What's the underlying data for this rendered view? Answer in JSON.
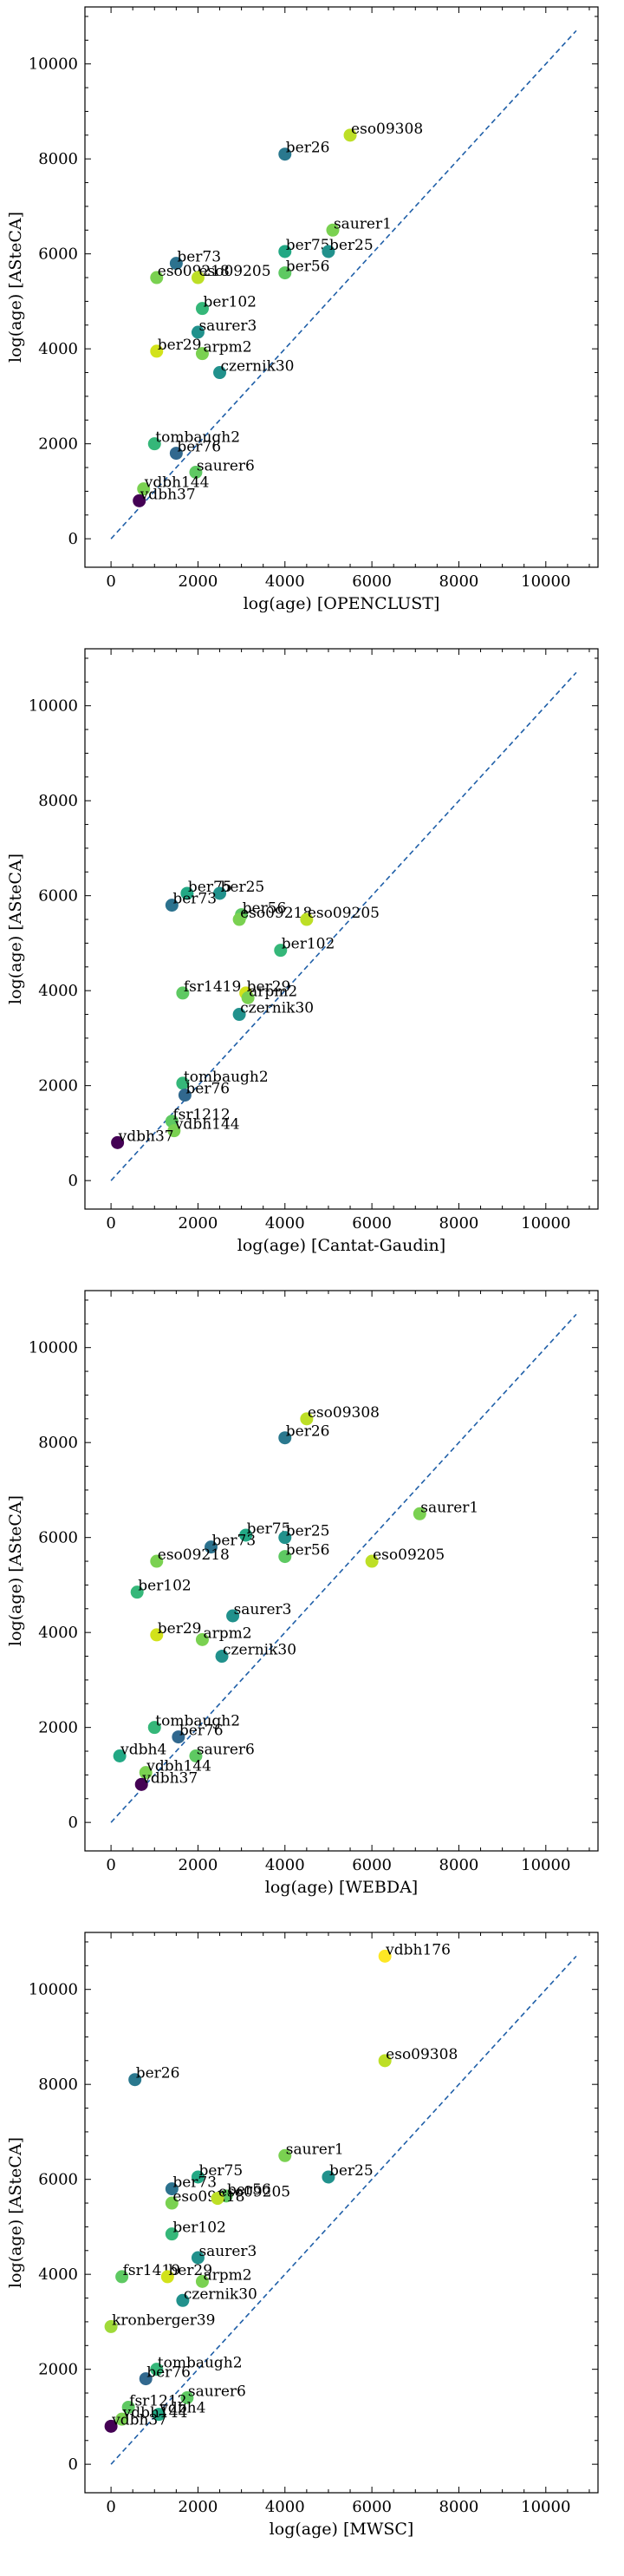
{
  "chart_data": [
    {
      "type": "scatter",
      "xlabel": "log(age) [OPENCLUST]",
      "ylabel": "log(age) [ASteCA]",
      "xlim": [
        -600,
        11200
      ],
      "ylim": [
        -600,
        11200
      ],
      "xticks": [
        0,
        2000,
        4000,
        6000,
        8000,
        10000
      ],
      "yticks": [
        0,
        2000,
        4000,
        6000,
        8000,
        10000
      ],
      "reference_line": "y = x",
      "points": [
        {
          "label": "eso09308",
          "x": 5500,
          "y": 8500,
          "color": "#bddf26"
        },
        {
          "label": "ber26",
          "x": 4000,
          "y": 8100,
          "color": "#2a788e"
        },
        {
          "label": "saurer1",
          "x": 5100,
          "y": 6500,
          "color": "#7ad151"
        },
        {
          "label": "ber75",
          "x": 4000,
          "y": 6050,
          "color": "#22a884"
        },
        {
          "label": "ber25",
          "x": 5000,
          "y": 6050,
          "color": "#21918c"
        },
        {
          "label": "ber56",
          "x": 4000,
          "y": 5600,
          "color": "#5ec962"
        },
        {
          "label": "ber73",
          "x": 1500,
          "y": 5800,
          "color": "#2c728e"
        },
        {
          "label": "eso09218",
          "x": 1050,
          "y": 5500,
          "color": "#7ad151"
        },
        {
          "label": "eso09205",
          "x": 2000,
          "y": 5500,
          "color": "#bddf26"
        },
        {
          "label": "ber102",
          "x": 2100,
          "y": 4850,
          "color": "#35b779"
        },
        {
          "label": "saurer3",
          "x": 2000,
          "y": 4350,
          "color": "#21918c"
        },
        {
          "label": "ber29",
          "x": 1050,
          "y": 3950,
          "color": "#d2e21b"
        },
        {
          "label": "arpm2",
          "x": 2100,
          "y": 3900,
          "color": "#7ad151"
        },
        {
          "label": "czernik30",
          "x": 2500,
          "y": 3500,
          "color": "#21918c"
        },
        {
          "label": "tombaugh2",
          "x": 1000,
          "y": 2000,
          "color": "#35b779"
        },
        {
          "label": "ber76",
          "x": 1500,
          "y": 1800,
          "color": "#31688e"
        },
        {
          "label": "saurer6",
          "x": 1950,
          "y": 1400,
          "color": "#5ec962"
        },
        {
          "label": "vdbh144",
          "x": 750,
          "y": 1050,
          "color": "#7ad151"
        },
        {
          "label": "vdbh37",
          "x": 650,
          "y": 800,
          "color": "#440154"
        }
      ]
    },
    {
      "type": "scatter",
      "xlabel": "log(age) [Cantat-Gaudin]",
      "ylabel": "log(age) [ASteCA]",
      "xlim": [
        -600,
        11200
      ],
      "ylim": [
        -600,
        11200
      ],
      "xticks": [
        0,
        2000,
        4000,
        6000,
        8000,
        10000
      ],
      "yticks": [
        0,
        2000,
        4000,
        6000,
        8000,
        10000
      ],
      "reference_line": "y = x",
      "points": [
        {
          "label": "ber75",
          "x": 1750,
          "y": 6050,
          "color": "#22a884"
        },
        {
          "label": "ber25",
          "x": 2500,
          "y": 6050,
          "color": "#21918c"
        },
        {
          "label": "ber73",
          "x": 1400,
          "y": 5800,
          "color": "#2c728e"
        },
        {
          "label": "ber56",
          "x": 3000,
          "y": 5600,
          "color": "#5ec962"
        },
        {
          "label": "eso09218",
          "x": 2950,
          "y": 5500,
          "color": "#7ad151"
        },
        {
          "label": "eso09205",
          "x": 4500,
          "y": 5500,
          "color": "#bddf26"
        },
        {
          "label": "ber102",
          "x": 3900,
          "y": 4850,
          "color": "#35b779"
        },
        {
          "label": "fsr1419",
          "x": 1650,
          "y": 3950,
          "color": "#5ec962"
        },
        {
          "label": "ber29",
          "x": 3100,
          "y": 3950,
          "color": "#d2e21b"
        },
        {
          "label": "arpm2",
          "x": 3150,
          "y": 3850,
          "color": "#7ad151"
        },
        {
          "label": "czernik30",
          "x": 2950,
          "y": 3500,
          "color": "#21918c"
        },
        {
          "label": "tombaugh2",
          "x": 1650,
          "y": 2050,
          "color": "#35b779"
        },
        {
          "label": "ber76",
          "x": 1700,
          "y": 1800,
          "color": "#31688e"
        },
        {
          "label": "fsr1212",
          "x": 1400,
          "y": 1250,
          "color": "#5ec962"
        },
        {
          "label": "vdbh144",
          "x": 1450,
          "y": 1050,
          "color": "#7ad151"
        },
        {
          "label": "vdbh37",
          "x": 150,
          "y": 800,
          "color": "#440154"
        }
      ]
    },
    {
      "type": "scatter",
      "xlabel": "log(age) [WEBDA]",
      "ylabel": "log(age) [ASteCA]",
      "xlim": [
        -600,
        11200
      ],
      "ylim": [
        -600,
        11200
      ],
      "xticks": [
        0,
        2000,
        4000,
        6000,
        8000,
        10000
      ],
      "yticks": [
        0,
        2000,
        4000,
        6000,
        8000,
        10000
      ],
      "reference_line": "y = x",
      "points": [
        {
          "label": "eso09308",
          "x": 4500,
          "y": 8500,
          "color": "#bddf26"
        },
        {
          "label": "ber26",
          "x": 4000,
          "y": 8100,
          "color": "#2a788e"
        },
        {
          "label": "saurer1",
          "x": 7100,
          "y": 6500,
          "color": "#7ad151"
        },
        {
          "label": "ber75",
          "x": 3100,
          "y": 6050,
          "color": "#22a884"
        },
        {
          "label": "ber25",
          "x": 4000,
          "y": 6000,
          "color": "#21918c"
        },
        {
          "label": "ber73",
          "x": 2300,
          "y": 5800,
          "color": "#2c728e"
        },
        {
          "label": "ber56",
          "x": 4000,
          "y": 5600,
          "color": "#5ec962"
        },
        {
          "label": "eso09218",
          "x": 1050,
          "y": 5500,
          "color": "#7ad151"
        },
        {
          "label": "eso09205",
          "x": 6000,
          "y": 5500,
          "color": "#bddf26"
        },
        {
          "label": "ber102",
          "x": 600,
          "y": 4850,
          "color": "#35b779"
        },
        {
          "label": "saurer3",
          "x": 2800,
          "y": 4350,
          "color": "#21918c"
        },
        {
          "label": "ber29",
          "x": 1050,
          "y": 3950,
          "color": "#d2e21b"
        },
        {
          "label": "arpm2",
          "x": 2100,
          "y": 3850,
          "color": "#7ad151"
        },
        {
          "label": "czernik30",
          "x": 2550,
          "y": 3500,
          "color": "#21918c"
        },
        {
          "label": "tombaugh2",
          "x": 1000,
          "y": 2000,
          "color": "#35b779"
        },
        {
          "label": "ber76",
          "x": 1550,
          "y": 1800,
          "color": "#31688e"
        },
        {
          "label": "saurer6",
          "x": 1950,
          "y": 1400,
          "color": "#5ec962"
        },
        {
          "label": "vdbh4",
          "x": 200,
          "y": 1400,
          "color": "#22a884"
        },
        {
          "label": "vdbh144",
          "x": 800,
          "y": 1050,
          "color": "#7ad151"
        },
        {
          "label": "vdbh37",
          "x": 700,
          "y": 800,
          "color": "#440154"
        }
      ]
    },
    {
      "type": "scatter",
      "xlabel": "log(age) [MWSC]",
      "ylabel": "log(age) [ASteCA]",
      "xlim": [
        -600,
        11200
      ],
      "ylim": [
        -600,
        11200
      ],
      "xticks": [
        0,
        2000,
        4000,
        6000,
        8000,
        10000
      ],
      "yticks": [
        0,
        2000,
        4000,
        6000,
        8000,
        10000
      ],
      "reference_line": "y = x",
      "points": [
        {
          "label": "vdbh176",
          "x": 6300,
          "y": 10700,
          "color": "#fde725"
        },
        {
          "label": "eso09308",
          "x": 6300,
          "y": 8500,
          "color": "#bddf26"
        },
        {
          "label": "ber26",
          "x": 550,
          "y": 8100,
          "color": "#2a788e"
        },
        {
          "label": "saurer1",
          "x": 4000,
          "y": 6500,
          "color": "#7ad151"
        },
        {
          "label": "ber25",
          "x": 5000,
          "y": 6050,
          "color": "#21918c"
        },
        {
          "label": "ber75",
          "x": 2000,
          "y": 6050,
          "color": "#22a884"
        },
        {
          "label": "ber73",
          "x": 1400,
          "y": 5800,
          "color": "#2c728e"
        },
        {
          "label": "ber56",
          "x": 2650,
          "y": 5650,
          "color": "#5ec962"
        },
        {
          "label": "eso09218",
          "x": 1400,
          "y": 5500,
          "color": "#7ad151"
        },
        {
          "label": "eso09205",
          "x": 2450,
          "y": 5600,
          "color": "#bddf26"
        },
        {
          "label": "ber102",
          "x": 1400,
          "y": 4850,
          "color": "#35b779"
        },
        {
          "label": "saurer3",
          "x": 2000,
          "y": 4350,
          "color": "#21918c"
        },
        {
          "label": "fsr1419",
          "x": 250,
          "y": 3950,
          "color": "#5ec962"
        },
        {
          "label": "ber29",
          "x": 1300,
          "y": 3950,
          "color": "#d2e21b"
        },
        {
          "label": "arpm2",
          "x": 2100,
          "y": 3850,
          "color": "#7ad151"
        },
        {
          "label": "czernik30",
          "x": 1650,
          "y": 3450,
          "color": "#21918c"
        },
        {
          "label": "kronberger39",
          "x": 0,
          "y": 2900,
          "color": "#a0da39"
        },
        {
          "label": "tombaugh2",
          "x": 1050,
          "y": 2000,
          "color": "#35b779"
        },
        {
          "label": "ber76",
          "x": 800,
          "y": 1800,
          "color": "#31688e"
        },
        {
          "label": "saurer6",
          "x": 1750,
          "y": 1400,
          "color": "#5ec962"
        },
        {
          "label": "fsr1212",
          "x": 400,
          "y": 1200,
          "color": "#5ec962"
        },
        {
          "label": "vdbh4",
          "x": 1100,
          "y": 1050,
          "color": "#22a884"
        },
        {
          "label": "vdbh144",
          "x": 250,
          "y": 950,
          "color": "#7ad151"
        },
        {
          "label": "vdbh37",
          "x": 0,
          "y": 800,
          "color": "#440154"
        }
      ]
    }
  ]
}
